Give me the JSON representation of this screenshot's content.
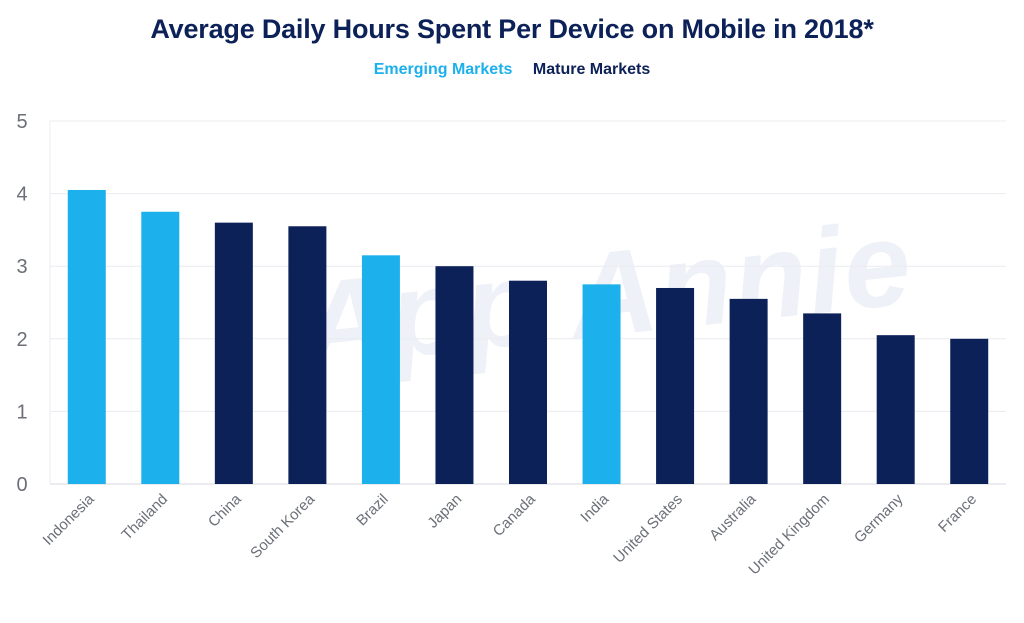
{
  "colors": {
    "emerging": "#1cb0ec",
    "mature": "#0d2159",
    "title": "#0d2159",
    "grid": "#e9ecf1",
    "tick": "#6b6f78"
  },
  "watermark": "App Annie",
  "chart_data": {
    "type": "bar",
    "title": "Average Daily Hours Spent Per Device on Mobile in 2018*",
    "xlabel": "",
    "ylabel": "",
    "ylim": [
      0,
      5
    ],
    "yticks": [
      "0",
      "1",
      "2",
      "3",
      "4",
      "5"
    ],
    "grid": true,
    "legend_placement": "top-center",
    "legend": [
      {
        "name": "Emerging Markets",
        "group": "emerging"
      },
      {
        "name": "Mature Markets",
        "group": "mature"
      }
    ],
    "categories": [
      "Indonesia",
      "Thailand",
      "China",
      "South Korea",
      "Brazil",
      "Japan",
      "Canada",
      "India",
      "United States",
      "Australia",
      "United Kingdom",
      "Germany",
      "France"
    ],
    "values": [
      4.05,
      3.75,
      3.6,
      3.55,
      3.15,
      3.0,
      2.8,
      2.75,
      2.7,
      2.55,
      2.35,
      2.05,
      2.0
    ],
    "groups": [
      "emerging",
      "emerging",
      "mature",
      "mature",
      "emerging",
      "mature",
      "mature",
      "emerging",
      "mature",
      "mature",
      "mature",
      "mature",
      "mature"
    ]
  }
}
